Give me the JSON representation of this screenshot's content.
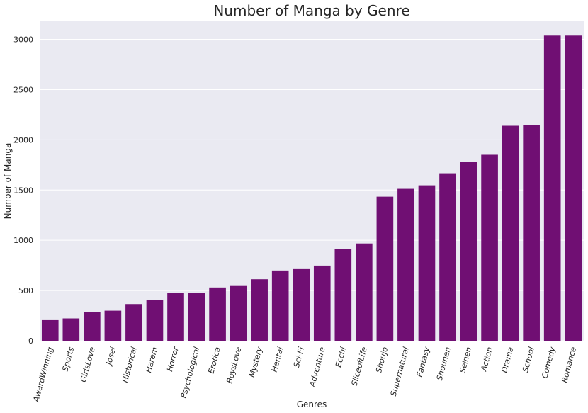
{
  "chart_data": {
    "type": "bar",
    "title": "Number of Manga by Genre",
    "xlabel": "Genres",
    "ylabel": "Number of Manga",
    "categories": [
      "AwardWinning",
      "Sports",
      "GirlsLove",
      "Josei",
      "Historical",
      "Harem",
      "Horror",
      "Psychological",
      "Erotica",
      "BoysLove",
      "Mystery",
      "Hentai",
      "Sci-Fi",
      "Adventure",
      "Ecchi",
      "SliceofLife",
      "Shoujo",
      "Supernatural",
      "Fantasy",
      "Shounen",
      "Seinen",
      "Action",
      "Drama",
      "School",
      "Comedy",
      "Romance"
    ],
    "values": [
      205,
      222,
      283,
      299,
      365,
      405,
      474,
      478,
      530,
      545,
      612,
      699,
      713,
      748,
      915,
      968,
      1434,
      1512,
      1547,
      1667,
      1778,
      1851,
      2140,
      2146,
      3037,
      3037
    ],
    "ylim": [
      0,
      3180
    ],
    "yticks": [
      0,
      500,
      1000,
      1500,
      2000,
      2500,
      3000
    ],
    "grid": true,
    "bar_color": "#700f73",
    "background": "#eaeaf2",
    "gridline_color": "#ffffff"
  }
}
